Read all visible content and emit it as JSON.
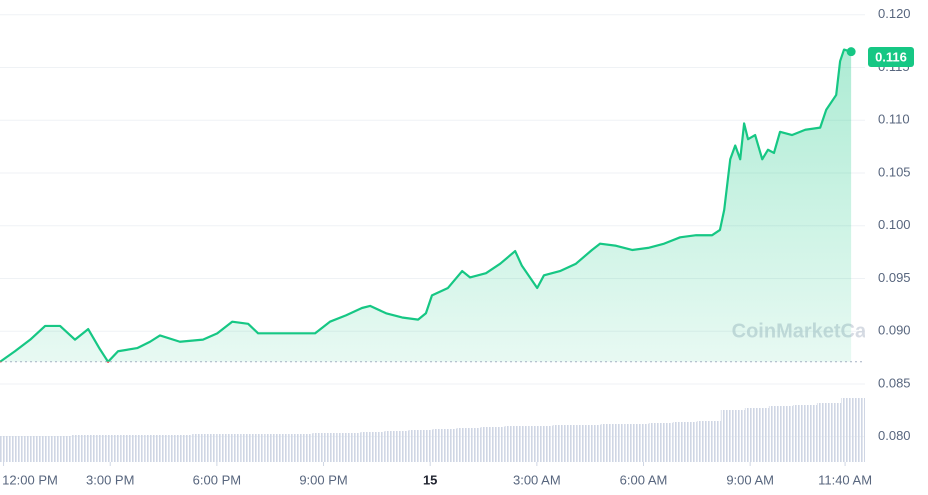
{
  "chart_data": {
    "type": "line",
    "x": [
      -0.1,
      0.32,
      0.75,
      1.17,
      1.59,
      2.01,
      2.38,
      2.71,
      2.94,
      3.22,
      3.76,
      4.12,
      4.4,
      4.96,
      5.61,
      6.01,
      6.43,
      6.88,
      7.16,
      7.72,
      8.34,
      8.76,
      9.18,
      9.63,
      10.08,
      10.31,
      10.76,
      11.21,
      11.66,
      11.88,
      12.05,
      12.5,
      12.9,
      13.12,
      13.57,
      13.97,
      14.39,
      14.58,
      15.01,
      15.2,
      15.65,
      16.1,
      16.55,
      16.78,
      17.23,
      17.68,
      18.13,
      18.58,
      19.03,
      19.48,
      19.93,
      20.15,
      20.27,
      20.44,
      20.58,
      20.72,
      20.83,
      20.94,
      21.14,
      21.34,
      21.5,
      21.67,
      21.84,
      22.18,
      22.55,
      22.97,
      23.14,
      23.42,
      23.53,
      23.64,
      23.84
    ],
    "values": [
      0.0871,
      0.0881,
      0.0892,
      0.0905,
      0.0905,
      0.0892,
      0.0902,
      0.0883,
      0.0871,
      0.0881,
      0.0884,
      0.089,
      0.0896,
      0.089,
      0.0892,
      0.0898,
      0.0909,
      0.0907,
      0.0898,
      0.0898,
      0.0898,
      0.0898,
      0.0909,
      0.0915,
      0.0922,
      0.0924,
      0.0917,
      0.0913,
      0.0911,
      0.0917,
      0.0934,
      0.0941,
      0.0957,
      0.0951,
      0.0955,
      0.0964,
      0.0976,
      0.0962,
      0.0941,
      0.0953,
      0.0957,
      0.0964,
      0.0977,
      0.0983,
      0.0981,
      0.0977,
      0.0979,
      0.0983,
      0.0989,
      0.0991,
      0.0991,
      0.0996,
      0.1015,
      0.1063,
      0.1076,
      0.1063,
      0.1097,
      0.1082,
      0.1086,
      0.1063,
      0.1072,
      0.1069,
      0.1089,
      0.1086,
      0.1091,
      0.1093,
      0.111,
      0.1124,
      0.1156,
      0.1167,
      0.1165
    ],
    "color": "#16c784",
    "down_color": "#ea3943",
    "baseline": 0.0871,
    "current_value": 0.116,
    "watermark": "CoinMarketCap",
    "xlim": [
      -0.1,
      24.23
    ],
    "xticks": [
      {
        "value": 0,
        "label": "12:00 PM"
      },
      {
        "value": 3,
        "label": "3:00 PM"
      },
      {
        "value": 6,
        "label": "6:00 PM"
      },
      {
        "value": 9,
        "label": "9:00 PM"
      },
      {
        "value": 12,
        "label": "15"
      },
      {
        "value": 15,
        "label": "3:00 AM"
      },
      {
        "value": 18,
        "label": "6:00 AM"
      },
      {
        "value": 21,
        "label": "9:00 AM"
      },
      {
        "value": 23.67,
        "label": "11:40 AM"
      }
    ],
    "ylim": [
      0.0776,
      0.1214
    ],
    "yticks": [
      {
        "value": 0.08,
        "label": "0.080"
      },
      0.085,
      {
        "value": 0.09,
        "label": "0.090"
      },
      0.095,
      {
        "value": 0.1,
        "label": "0.100"
      },
      0.105,
      {
        "value": 0.11,
        "label": "0.110"
      },
      0.115,
      {
        "value": 0.12,
        "label": "0.120"
      }
    ],
    "volume": {
      "values": [
        26,
        26,
        26,
        27,
        27,
        27,
        27,
        27,
        28,
        28,
        28,
        28,
        28,
        29,
        29,
        30,
        31,
        32,
        33,
        34,
        35,
        36,
        36,
        37,
        37,
        38,
        38,
        39,
        40,
        41,
        52,
        54,
        56,
        57,
        59,
        64
      ],
      "ylim": [
        0,
        100
      ],
      "color": "#cfd6e4"
    }
  }
}
